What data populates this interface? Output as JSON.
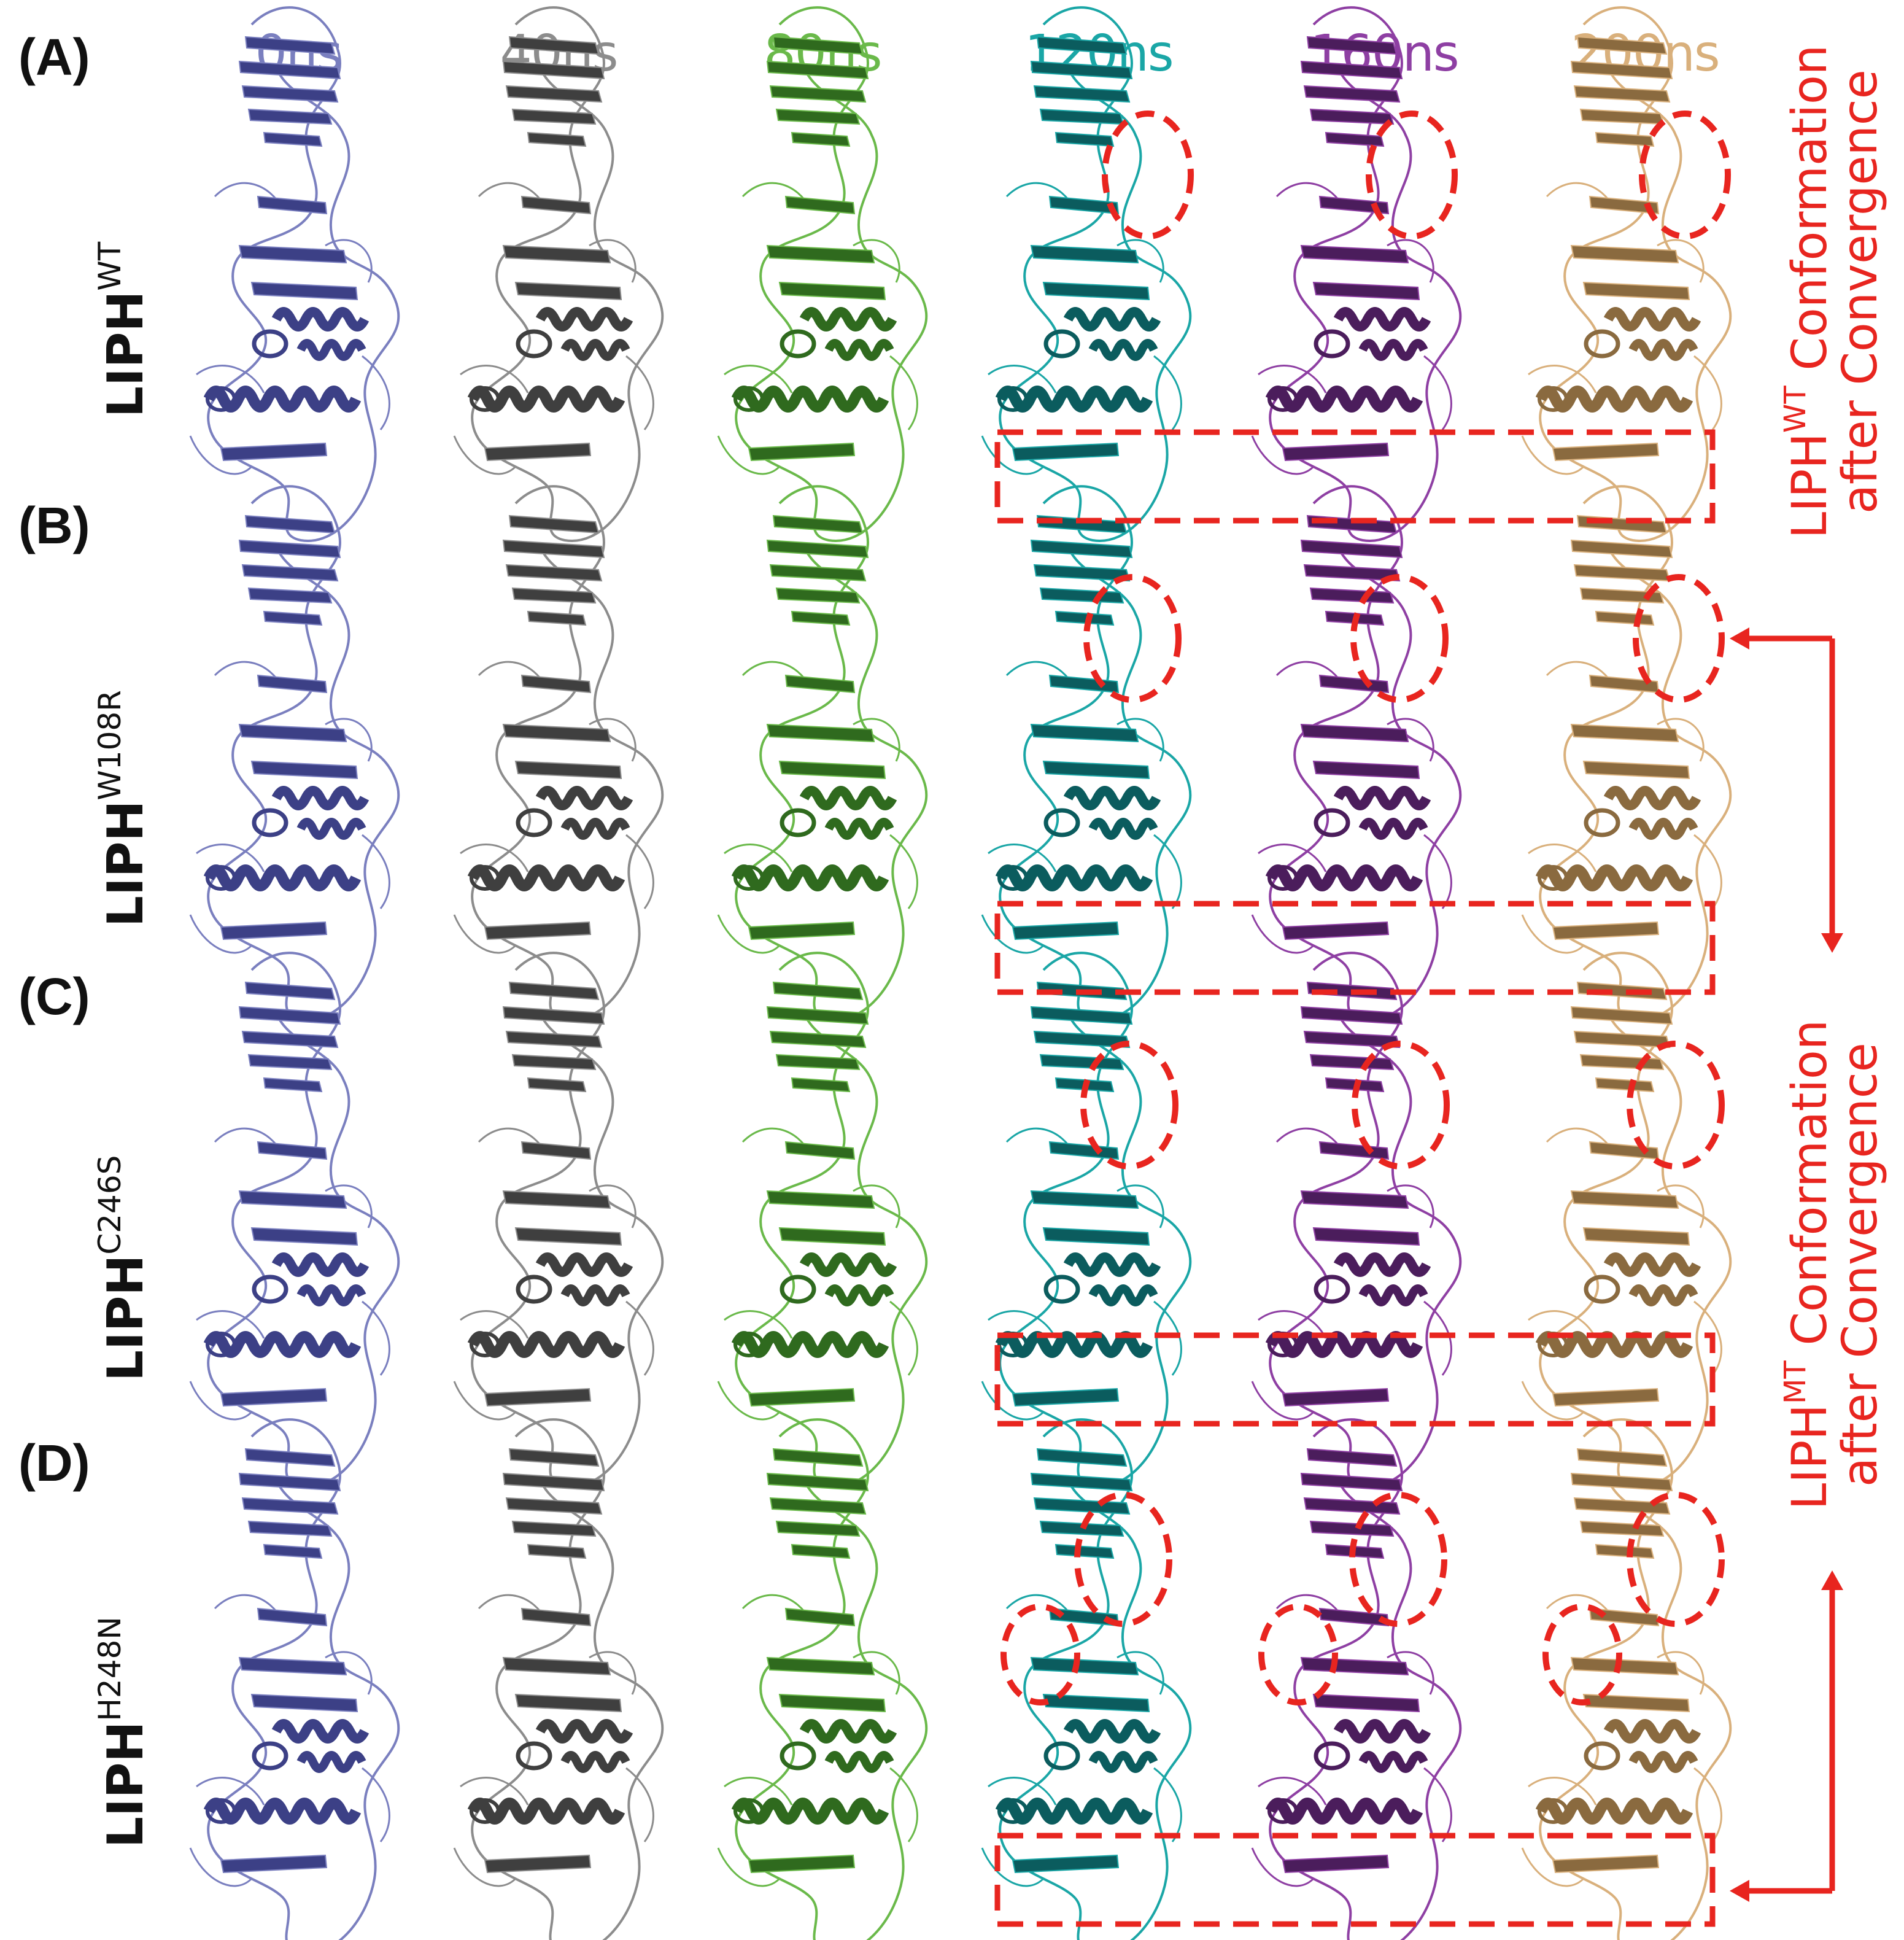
{
  "panels": [
    "(A)",
    "(B)",
    "(C)",
    "(D)"
  ],
  "time_points": [
    {
      "label": "0ns",
      "color": "#7a7fbf"
    },
    {
      "label": "40ns",
      "color": "#8c8c8c"
    },
    {
      "label": "80ns",
      "color": "#6ab94a"
    },
    {
      "label": "120ns",
      "color": "#1aa6a6"
    },
    {
      "label": "160ns",
      "color": "#8e3fa3"
    },
    {
      "label": "200ns",
      "color": "#d9b07c"
    }
  ],
  "rows": [
    {
      "base": "LIPH",
      "sup": "WT"
    },
    {
      "base": "LIPH",
      "sup": "W108R"
    },
    {
      "base": "LIPH",
      "sup": "C246S"
    },
    {
      "base": "LIPH",
      "sup": "H248N"
    }
  ],
  "side_labels": {
    "wt": {
      "base": "LIPH",
      "sup": "WT",
      "line1_rest": " Conformation",
      "line2": "after Convergence"
    },
    "mt": {
      "base": "LIPH",
      "sup": "MT",
      "line1_rest": " Conformation",
      "line2": "after Convergence"
    }
  },
  "colors": {
    "highlight": "#e8251f",
    "ribbon_dark": {
      "0ns": "#3c4086",
      "40ns": "#3f3f3f",
      "80ns": "#2f6a1e",
      "120ns": "#0b5c5e",
      "160ns": "#4b1d5c",
      "200ns": "#8a6a3f"
    }
  }
}
